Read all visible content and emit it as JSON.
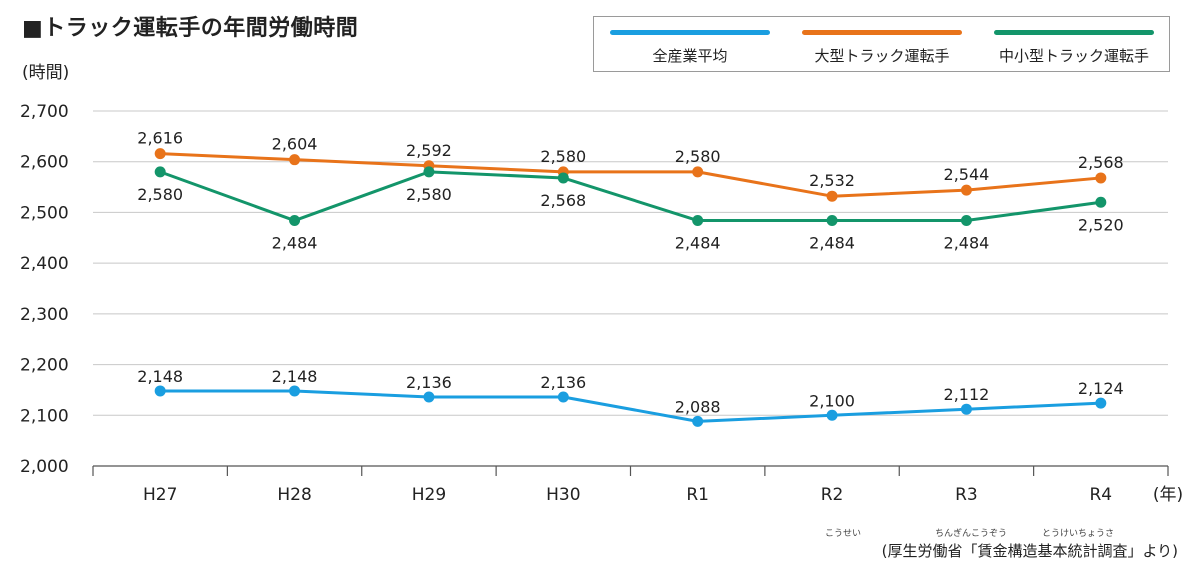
{
  "title": "■トラック運転手の年間労働時間",
  "unit_label": "(時間)",
  "x_unit_label": "(年)",
  "source": "(厚生労働省「賃金構造基本統計調査」より)",
  "source_ruby": [
    "こうせい",
    "ちんぎんこうぞう",
    "とうけいちょうさ"
  ],
  "chart_data": {
    "type": "line",
    "title": "■トラック運転手の年間労働時間",
    "ylabel": "(時間)",
    "xlabel": "(年)",
    "categories": [
      "H27",
      "H28",
      "H29",
      "H30",
      "R1",
      "R2",
      "R3",
      "R4"
    ],
    "ylim": [
      2000,
      2700
    ],
    "yticks": [
      "2,000",
      "2,100",
      "2,200",
      "2,300",
      "2,400",
      "2,500",
      "2,600",
      "2,700"
    ],
    "grid": true,
    "legend_position": "top-right",
    "series": [
      {
        "name": "全産業平均",
        "color": "#1a9ee0",
        "values": [
          2148,
          2148,
          2136,
          2136,
          2088,
          2100,
          2112,
          2124
        ]
      },
      {
        "name": "大型トラック運転手",
        "color": "#e8731a",
        "values": [
          2616,
          2604,
          2592,
          2580,
          2580,
          2532,
          2544,
          2568
        ]
      },
      {
        "name": "中小型トラック運転手",
        "color": "#13956a",
        "values": [
          2580,
          2484,
          2580,
          2568,
          2484,
          2484,
          2484,
          2520
        ]
      }
    ]
  }
}
